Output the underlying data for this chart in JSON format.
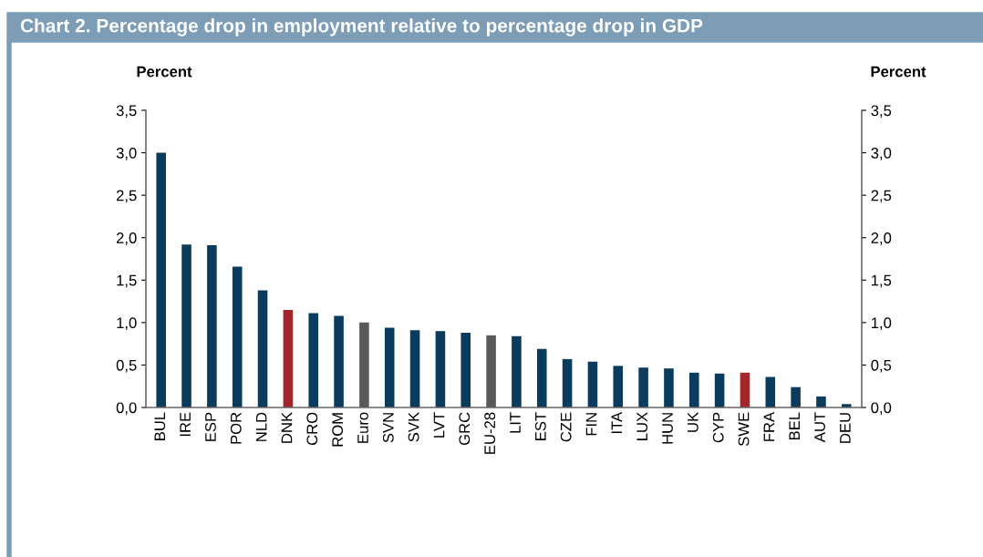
{
  "chart_data": {
    "type": "bar",
    "title": "Chart 2. Percentage drop in employment relative to percentage drop in GDP",
    "ylabel": "Percent",
    "y2label": "Percent",
    "categories": [
      "BUL",
      "IRE",
      "ESP",
      "POR",
      "NLD",
      "DNK",
      "CRO",
      "ROM",
      "Euro",
      "SVN",
      "SVK",
      "LVT",
      "GRC",
      "EU-28",
      "LIT",
      "EST",
      "CZE",
      "FIN",
      "ITA",
      "LUX",
      "HUN",
      "UK",
      "CYP",
      "SWE",
      "FRA",
      "BEL",
      "AUT",
      "DEU"
    ],
    "values": [
      3.0,
      1.92,
      1.91,
      1.66,
      1.38,
      1.15,
      1.11,
      1.08,
      1.0,
      0.94,
      0.91,
      0.9,
      0.88,
      0.85,
      0.84,
      0.69,
      0.57,
      0.54,
      0.49,
      0.47,
      0.46,
      0.41,
      0.4,
      0.41,
      0.36,
      0.24,
      0.13,
      0.04
    ],
    "colors": [
      "#0b3c5d",
      "#0b3c5d",
      "#0b3c5d",
      "#0b3c5d",
      "#0b3c5d",
      "#a3262a",
      "#0b3c5d",
      "#0b3c5d",
      "#595959",
      "#0b3c5d",
      "#0b3c5d",
      "#0b3c5d",
      "#0b3c5d",
      "#595959",
      "#0b3c5d",
      "#0b3c5d",
      "#0b3c5d",
      "#0b3c5d",
      "#0b3c5d",
      "#0b3c5d",
      "#0b3c5d",
      "#0b3c5d",
      "#0b3c5d",
      "#a3262a",
      "#0b3c5d",
      "#0b3c5d",
      "#0b3c5d",
      "#0b3c5d"
    ],
    "ylim": [
      0,
      3.5
    ],
    "yticks": [
      {
        "value": 0,
        "label": "0,0"
      },
      {
        "value": 0.5,
        "label": "0,5"
      },
      {
        "value": 1.0,
        "label": "1,0"
      },
      {
        "value": 1.5,
        "label": "1,5"
      },
      {
        "value": 2.0,
        "label": "2,0"
      },
      {
        "value": 2.5,
        "label": "2,5"
      },
      {
        "value": 3.0,
        "label": "3,0"
      },
      {
        "value": 3.5,
        "label": "3,5"
      }
    ],
    "y2lim": [
      0,
      3.5
    ],
    "y2ticks": [
      {
        "value": 0,
        "label": "0,0"
      },
      {
        "value": 0.5,
        "label": "0,5"
      },
      {
        "value": 1.0,
        "label": "1,0"
      },
      {
        "value": 1.5,
        "label": "1,5"
      },
      {
        "value": 2.0,
        "label": "2,0"
      },
      {
        "value": 2.5,
        "label": "2,5"
      },
      {
        "value": 3.0,
        "label": "3,0"
      },
      {
        "value": 3.5,
        "label": "3,5"
      }
    ],
    "grid": false,
    "legend": false
  }
}
